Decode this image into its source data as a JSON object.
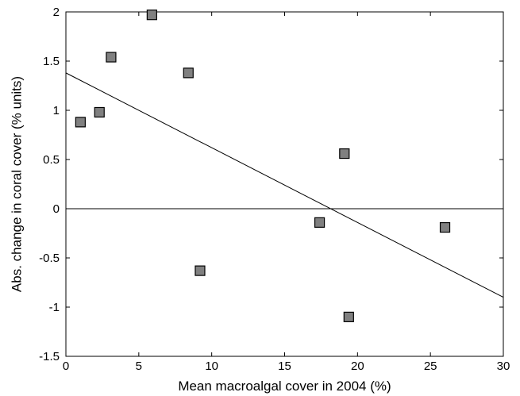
{
  "chart_data": {
    "type": "scatter",
    "title": "",
    "xlabel": "Mean macroalgal cover in 2004 (%)",
    "ylabel": "Abs. change in coral cover (% units)",
    "xlim": [
      0,
      30
    ],
    "ylim": [
      -1.5,
      2
    ],
    "x_ticks": [
      0,
      5,
      10,
      15,
      20,
      25,
      30
    ],
    "y_ticks": [
      -1.5,
      -1,
      -0.5,
      0,
      0.5,
      1,
      1.5,
      2
    ],
    "x_tick_labels": [
      "0",
      "5",
      "10",
      "15",
      "20",
      "25",
      "30"
    ],
    "y_tick_labels": [
      "-1.5",
      "-1",
      "-0.5",
      "0",
      "0.5",
      "1",
      "1.5",
      "2"
    ],
    "grid": false,
    "legend": "none",
    "marker": "square",
    "marker_color": "#808080",
    "points": [
      {
        "x": 1.0,
        "y": 0.88
      },
      {
        "x": 2.3,
        "y": 0.98
      },
      {
        "x": 3.1,
        "y": 1.54
      },
      {
        "x": 5.9,
        "y": 1.97
      },
      {
        "x": 8.4,
        "y": 1.38
      },
      {
        "x": 9.2,
        "y": -0.63
      },
      {
        "x": 17.4,
        "y": -0.14
      },
      {
        "x": 19.1,
        "y": 0.56
      },
      {
        "x": 19.4,
        "y": -1.1
      },
      {
        "x": 26.0,
        "y": -0.19
      }
    ],
    "reference_line": {
      "y": 0
    },
    "fit_line": {
      "x": [
        0,
        30
      ],
      "y": [
        1.38,
        -0.9
      ]
    }
  }
}
